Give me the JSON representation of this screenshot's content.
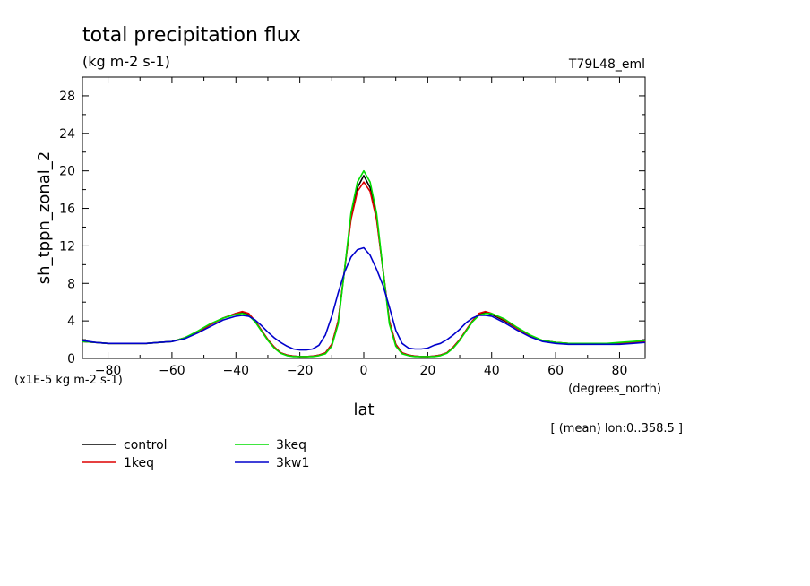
{
  "chart_data": {
    "type": "line",
    "title": "total precipitation flux",
    "subtitle": "(kg m-2 s-1)",
    "experiment_label": "T79L48_eml",
    "ylabel": "sh_tppn_zonal_2",
    "xlabel": "lat",
    "x_units_label": "(degrees_north)",
    "y_units_label": "(x1E-5 kg m-2 s-1)",
    "footnote": "[ (mean) lon:0..358.5 ]",
    "xlim": [
      -88,
      88
    ],
    "ylim": [
      0,
      30
    ],
    "x_ticks": [
      -80,
      -60,
      -40,
      -20,
      0,
      20,
      40,
      60,
      80
    ],
    "y_ticks": [
      0,
      4,
      8,
      12,
      16,
      20,
      24,
      28
    ],
    "grid": false,
    "legend_position": "bottom-left",
    "x": [
      -88,
      -84,
      -80,
      -76,
      -72,
      -68,
      -64,
      -60,
      -56,
      -52,
      -48,
      -44,
      -40,
      -38,
      -36,
      -34,
      -32,
      -30,
      -28,
      -26,
      -24,
      -22,
      -20,
      -18,
      -16,
      -14,
      -12,
      -10,
      -8,
      -6,
      -4,
      -2,
      0,
      2,
      4,
      6,
      8,
      10,
      12,
      14,
      16,
      18,
      20,
      22,
      24,
      26,
      28,
      30,
      32,
      34,
      36,
      38,
      40,
      44,
      48,
      52,
      56,
      60,
      64,
      68,
      72,
      76,
      80,
      84,
      88
    ],
    "series": [
      {
        "name": "control",
        "color": "#000000",
        "values": [
          1.8,
          1.7,
          1.6,
          1.6,
          1.6,
          1.6,
          1.7,
          1.8,
          2.2,
          2.8,
          3.6,
          4.3,
          4.8,
          4.9,
          4.7,
          4.0,
          3.0,
          2.0,
          1.2,
          0.6,
          0.35,
          0.25,
          0.2,
          0.2,
          0.25,
          0.35,
          0.6,
          1.5,
          4.0,
          9.5,
          15.0,
          18.2,
          19.5,
          18.2,
          15.0,
          9.5,
          4.0,
          1.5,
          0.6,
          0.35,
          0.25,
          0.2,
          0.2,
          0.25,
          0.35,
          0.6,
          1.2,
          2.0,
          3.0,
          4.0,
          4.7,
          4.9,
          4.7,
          4.0,
          3.2,
          2.4,
          1.9,
          1.7,
          1.6,
          1.6,
          1.6,
          1.6,
          1.6,
          1.7,
          1.8
        ]
      },
      {
        "name": "1keq",
        "color": "#dd0000",
        "values": [
          1.8,
          1.7,
          1.6,
          1.6,
          1.6,
          1.6,
          1.7,
          1.8,
          2.2,
          2.8,
          3.6,
          4.3,
          4.8,
          5.0,
          4.8,
          4.0,
          3.0,
          2.0,
          1.2,
          0.6,
          0.35,
          0.25,
          0.2,
          0.2,
          0.25,
          0.35,
          0.6,
          1.5,
          4.0,
          9.5,
          14.8,
          17.8,
          18.8,
          17.8,
          14.8,
          9.5,
          4.0,
          1.5,
          0.6,
          0.35,
          0.25,
          0.2,
          0.2,
          0.25,
          0.35,
          0.6,
          1.2,
          2.0,
          3.0,
          4.0,
          4.8,
          5.0,
          4.8,
          4.1,
          3.2,
          2.4,
          1.9,
          1.7,
          1.6,
          1.6,
          1.6,
          1.6,
          1.6,
          1.7,
          1.8
        ]
      },
      {
        "name": "3keq",
        "color": "#00dd00",
        "values": [
          1.8,
          1.7,
          1.6,
          1.6,
          1.6,
          1.6,
          1.7,
          1.8,
          2.2,
          2.9,
          3.7,
          4.3,
          4.7,
          4.8,
          4.6,
          3.9,
          2.9,
          1.9,
          1.1,
          0.55,
          0.3,
          0.2,
          0.2,
          0.2,
          0.2,
          0.3,
          0.5,
          1.3,
          3.7,
          9.5,
          15.5,
          18.8,
          20.0,
          18.8,
          15.5,
          9.5,
          3.7,
          1.3,
          0.5,
          0.3,
          0.2,
          0.2,
          0.2,
          0.2,
          0.3,
          0.55,
          1.1,
          1.9,
          2.9,
          3.9,
          4.6,
          4.8,
          4.8,
          4.2,
          3.3,
          2.5,
          1.9,
          1.7,
          1.6,
          1.6,
          1.6,
          1.6,
          1.7,
          1.8,
          1.9
        ]
      },
      {
        "name": "3kw1",
        "color": "#0000cc",
        "values": [
          1.9,
          1.7,
          1.6,
          1.6,
          1.6,
          1.6,
          1.7,
          1.8,
          2.1,
          2.7,
          3.4,
          4.1,
          4.5,
          4.6,
          4.5,
          4.1,
          3.5,
          2.8,
          2.2,
          1.7,
          1.3,
          1.0,
          0.9,
          0.9,
          1.0,
          1.4,
          2.5,
          4.5,
          7.0,
          9.2,
          10.8,
          11.6,
          11.8,
          11.0,
          9.5,
          7.8,
          5.5,
          3.0,
          1.6,
          1.1,
          1.0,
          1.0,
          1.1,
          1.4,
          1.6,
          2.0,
          2.5,
          3.1,
          3.8,
          4.3,
          4.6,
          4.6,
          4.5,
          3.8,
          3.0,
          2.3,
          1.8,
          1.6,
          1.5,
          1.5,
          1.5,
          1.5,
          1.5,
          1.6,
          1.7
        ]
      }
    ]
  }
}
